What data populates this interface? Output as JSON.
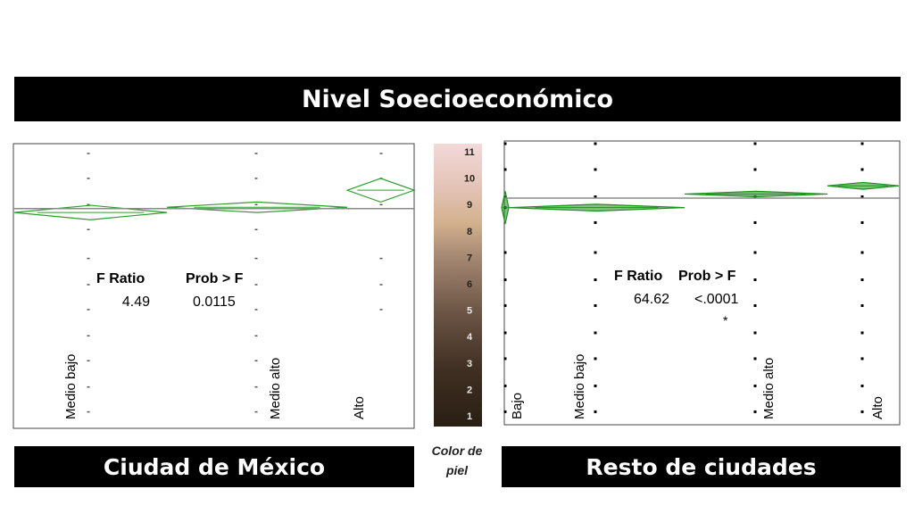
{
  "header": {
    "title": "Nivel Soecioeconómico"
  },
  "legend": {
    "caption_line1": "Color de",
    "caption_line2": "piel",
    "levels": [
      "1",
      "2",
      "3",
      "4",
      "5",
      "6",
      "7",
      "8",
      "9",
      "10",
      "11"
    ],
    "colors": [
      "#2a1f14",
      "#3b2a1d",
      "#4a3a2e",
      "#5e4a3b",
      "#7a6050",
      "#95796a",
      "#b09484",
      "#c8a98e",
      "#dab9a8",
      "#e8c6c0",
      "#f0d5d3"
    ]
  },
  "chart_data": [
    {
      "type": "scatter",
      "title": "Ciudad de México",
      "categories": [
        "Medio bajo",
        "Medio alto",
        "Alto"
      ],
      "ylim": [
        1,
        11
      ],
      "grand_mean": 8.9,
      "group_means": [
        8.75,
        8.95,
        9.6
      ],
      "points": [
        [
          1.15,
          2.1,
          3.1,
          4.05,
          5.05,
          6.0,
          7.0,
          8.1,
          9.05,
          10.05,
          11.0
        ],
        [
          1.15,
          2.1,
          3.1,
          4.05,
          5.05,
          6.0,
          7.0,
          8.1,
          9.05,
          10.05,
          11.0
        ],
        [
          5.05,
          6.0,
          7.0,
          9.05,
          10.05,
          11.0
        ]
      ],
      "stats": {
        "f_ratio_label": "F Ratio",
        "prob_label": "Prob > F",
        "f_ratio": "4.49",
        "prob": "0.0115"
      },
      "series_color": "#2e9e2e"
    },
    {
      "type": "scatter",
      "title": "Resto de ciudades",
      "categories": [
        "Bajo",
        "Medio bajo",
        "Medio alto",
        "Alto"
      ],
      "ylim": [
        1,
        11
      ],
      "grand_mean": 9.0,
      "group_means": [
        8.65,
        8.65,
        9.15,
        9.45
      ],
      "points": [
        [
          1.15,
          2.1,
          3.1,
          4.05,
          5.05,
          6.0,
          7.0,
          8.65,
          9.05,
          10.05,
          11.0
        ],
        [
          1.15,
          2.1,
          3.1,
          4.05,
          5.05,
          6.0,
          7.0,
          8.1,
          9.05,
          10.05,
          11.0
        ],
        [
          1.15,
          2.1,
          3.1,
          4.05,
          5.05,
          6.0,
          7.0,
          8.1,
          9.05,
          10.05,
          11.0
        ],
        [
          1.15,
          2.1,
          3.1,
          4.05,
          5.05,
          6.0,
          7.0,
          8.1,
          9.05,
          10.05,
          11.0
        ]
      ],
      "stats": {
        "f_ratio_label": "F Ratio",
        "prob_label": "Prob > F",
        "f_ratio": "64.62",
        "prob": "<.0001",
        "significance": "*"
      },
      "series_color": "#1f8f1f"
    }
  ]
}
